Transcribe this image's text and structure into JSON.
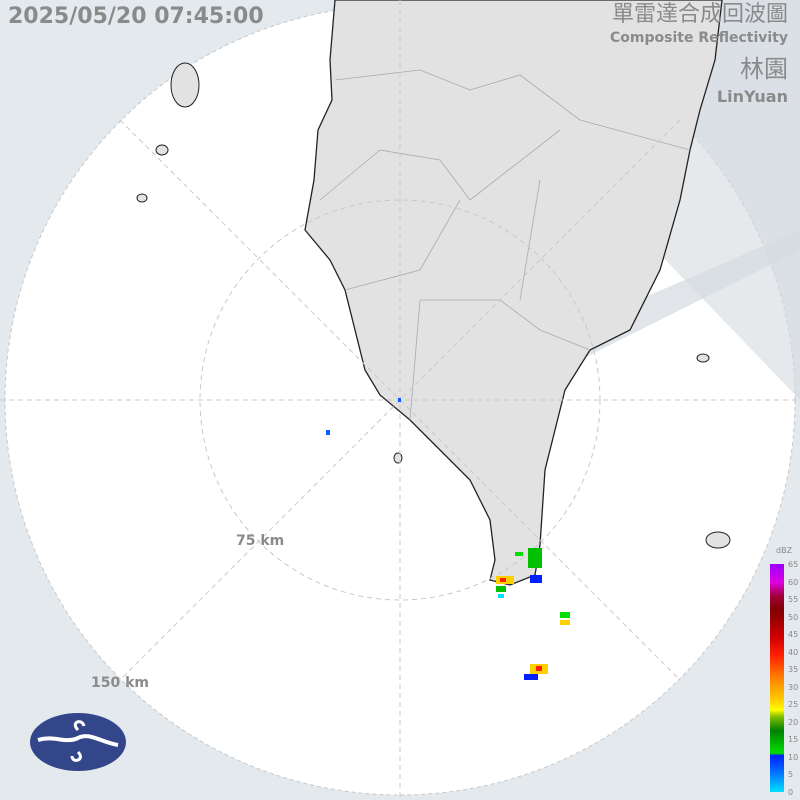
{
  "header": {
    "timestamp": "2025/05/20 07:45:00",
    "product_zh": "單雷達合成回波圖",
    "product_en": "Composite Reflectivity",
    "station_zh": "林園",
    "station_en": "LinYuan"
  },
  "range_rings": {
    "inner": "75 km",
    "outer": "150 km"
  },
  "legend": {
    "unit": "dBZ",
    "ticks": [
      "65",
      "60",
      "55",
      "50",
      "45",
      "40",
      "35",
      "30",
      "25",
      "20",
      "15",
      "10",
      "5",
      "0"
    ]
  },
  "colors": {
    "background": "#e4e9ee",
    "radar_area": "#ffffff",
    "land": "#e2e2e2",
    "logo": "#33468a"
  },
  "logo": {
    "name": "cwa-logo"
  }
}
